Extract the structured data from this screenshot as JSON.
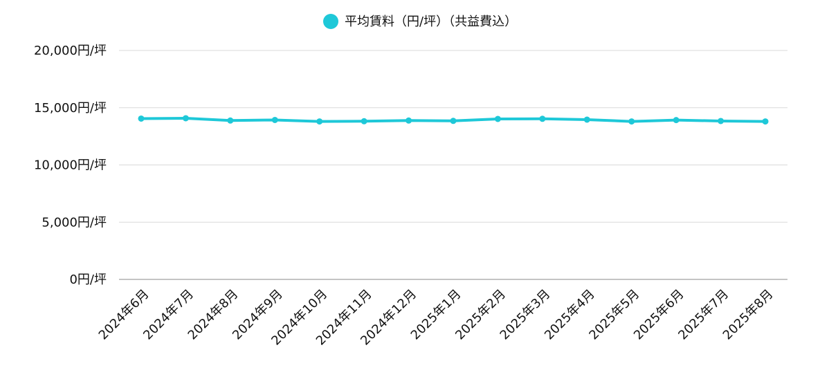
{
  "chart_data": {
    "type": "line",
    "categories": [
      "2024年6月",
      "2024年7月",
      "2024年8月",
      "2024年9月",
      "2024年10月",
      "2024年11月",
      "2024年12月",
      "2025年1月",
      "2025年2月",
      "2025年3月",
      "2025年4月",
      "2025年5月",
      "2025年6月",
      "2025年7月",
      "2025年8月"
    ],
    "series": [
      {
        "name": "平均賃料（円/坪）（共益費込）",
        "color": "#1ec8d8",
        "values": [
          14050,
          14080,
          13880,
          13930,
          13800,
          13820,
          13880,
          13850,
          14020,
          14030,
          13960,
          13800,
          13920,
          13840,
          13800
        ]
      }
    ],
    "y_ticks": [
      "0円/坪",
      "5,000円/坪",
      "10,000円/坪",
      "15,000円/坪",
      "20,000円/坪"
    ],
    "y_tick_values": [
      0,
      5000,
      10000,
      15000,
      20000
    ],
    "ylim": [
      0,
      20000
    ],
    "grid": true,
    "legend_position": "top-center"
  }
}
